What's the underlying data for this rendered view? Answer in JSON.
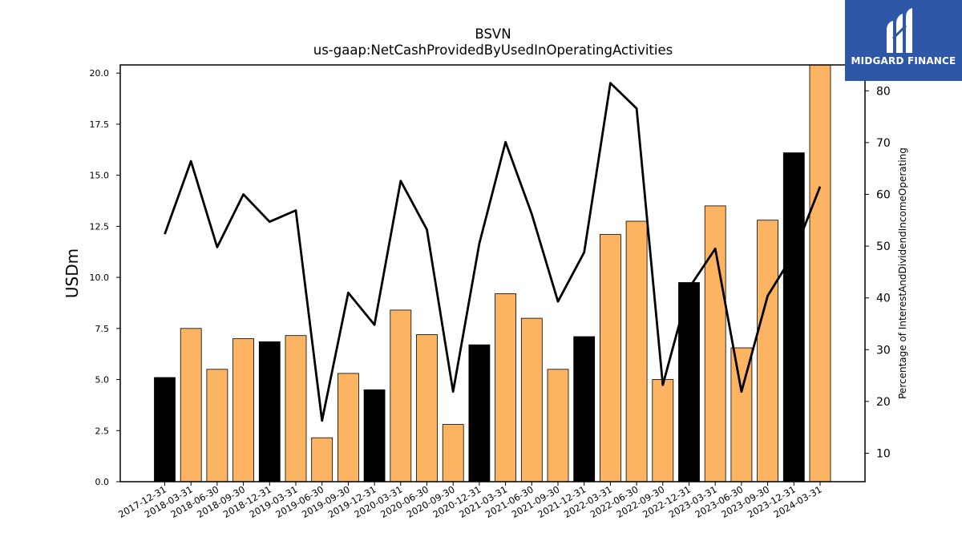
{
  "logo": {
    "brand_text": "MIDGARD FINANCE",
    "icon": "midgard-m-logo-icon",
    "background": "#2e57a8"
  },
  "chart_data": {
    "type": "bar",
    "title": "BSVN",
    "subtitle": "us-gaap:NetCashProvidedByUsedInOperatingActivities",
    "ylabel": "USDm",
    "y2label": "Percentage of InterestAndDividendIncomeOperating",
    "ylim": [
      0,
      20.4
    ],
    "y2lim": [
      4.5,
      85
    ],
    "yticks": [
      "0.0",
      "2.5",
      "5.0",
      "7.5",
      "10.0",
      "12.5",
      "15.0",
      "17.5",
      "20.0"
    ],
    "y2ticks": [
      "10",
      "20",
      "30",
      "40",
      "50",
      "60",
      "70",
      "80"
    ],
    "grid": false,
    "colors": {
      "q4": "#000000",
      "quarter": "#fdb462",
      "line": "#000000"
    },
    "categories": [
      "2017-12-31",
      "2018-03-31",
      "2018-06-30",
      "2018-09-30",
      "2018-12-31",
      "2019-03-31",
      "2019-06-30",
      "2019-09-30",
      "2019-12-31",
      "2020-03-31",
      "2020-06-30",
      "2020-09-30",
      "2020-12-31",
      "2021-03-31",
      "2021-06-30",
      "2021-09-30",
      "2021-12-31",
      "2022-03-31",
      "2022-06-30",
      "2022-09-30",
      "2022-12-31",
      "2023-03-31",
      "2023-06-30",
      "2023-09-30",
      "2023-12-31",
      "2024-03-31"
    ],
    "values": [
      5.1,
      7.5,
      5.5,
      7.0,
      6.85,
      7.15,
      2.15,
      5.3,
      4.5,
      8.4,
      7.2,
      2.8,
      6.7,
      9.2,
      8.0,
      5.5,
      7.1,
      12.1,
      12.75,
      5.0,
      9.75,
      13.5,
      6.55,
      12.8,
      16.1,
      20.4
    ],
    "bar_type": [
      "q4",
      "quarter",
      "quarter",
      "quarter",
      "q4",
      "quarter",
      "quarter",
      "quarter",
      "q4",
      "quarter",
      "quarter",
      "quarter",
      "q4",
      "quarter",
      "quarter",
      "quarter",
      "q4",
      "quarter",
      "quarter",
      "quarter",
      "q4",
      "quarter",
      "quarter",
      "quarter",
      "q4",
      "quarter"
    ],
    "line_values": [
      52.3,
      66.4,
      49.8,
      60.0,
      54.7,
      56.9,
      16.3,
      41.0,
      34.8,
      62.6,
      53.2,
      21.9,
      50.5,
      70.1,
      56.2,
      39.3,
      48.8,
      81.5,
      76.6,
      23.2,
      41.9,
      49.5,
      21.9,
      40.4,
      48.6,
      61.5
    ]
  }
}
